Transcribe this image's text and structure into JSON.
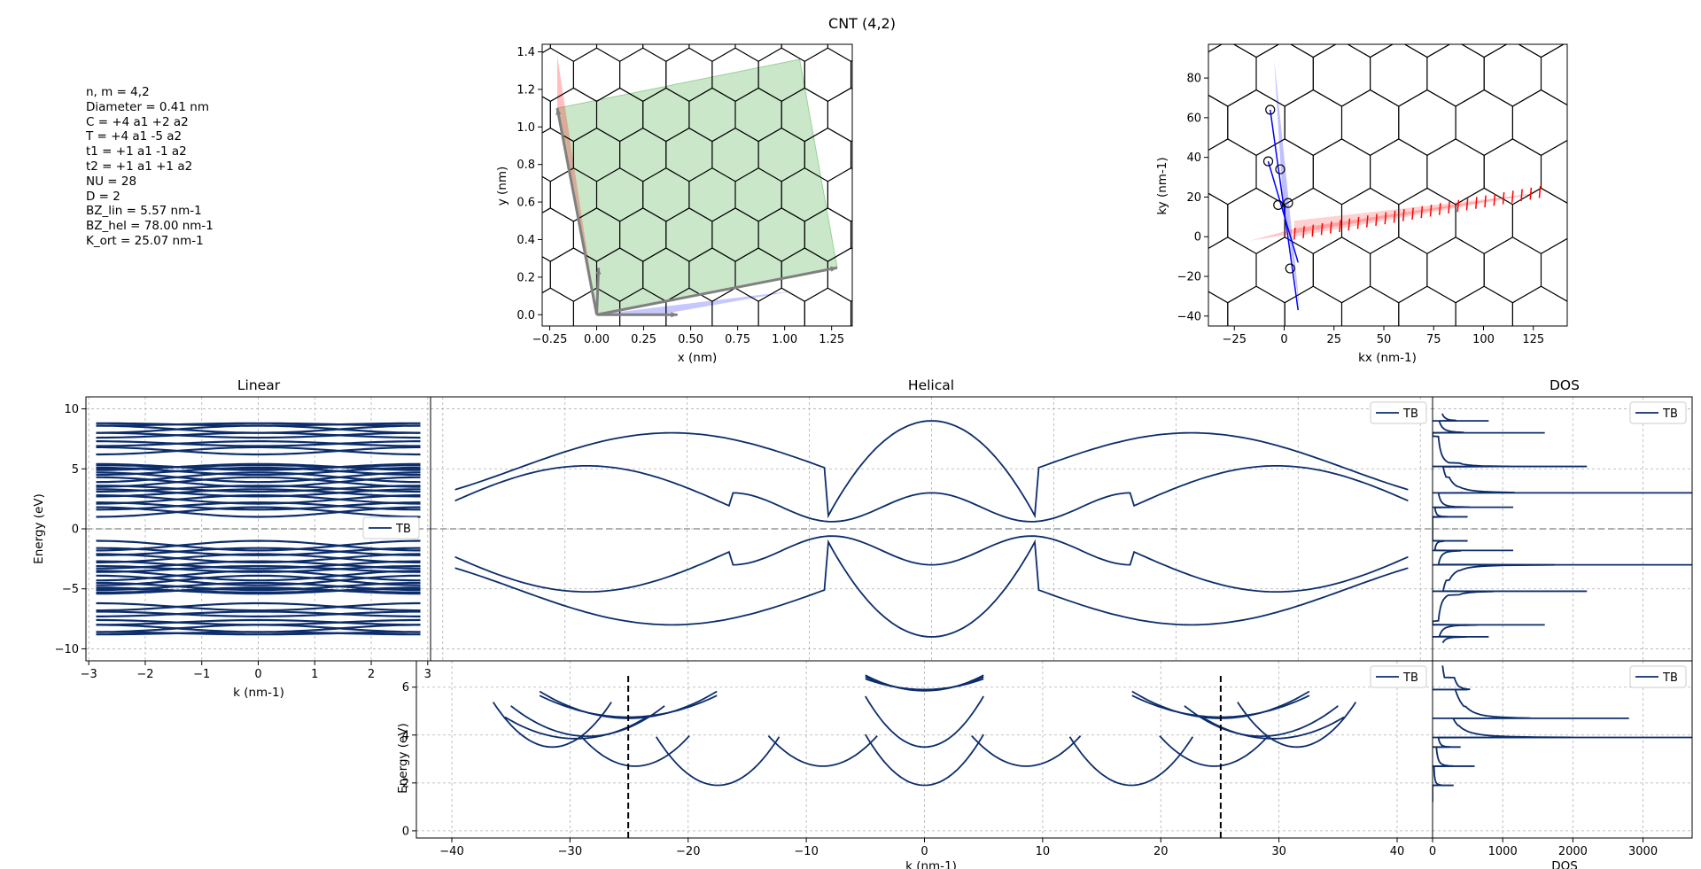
{
  "figure_title": "CNT (4,2)",
  "info_lines": [
    "n, m = 4,2",
    "Diameter = 0.41 nm",
    "C = +4 a1 +2 a2",
    "T = +4 a1 -5 a2",
    "t1 = +1 a1 -1 a2",
    "t2 = +1 a1 +1 a2",
    "NU = 28",
    "D = 2",
    "BZ_lin = 5.57 nm-1",
    "BZ_hel = 78.00 nm-1",
    "K_ort = 25.07 nm-1"
  ],
  "colors": {
    "band": "#0c2d6b",
    "red": "#ff0000",
    "blue": "#0000ff",
    "green": "#2ca02c",
    "arrow": "#808080"
  },
  "chart_data": [
    {
      "id": "lattice",
      "type": "scatter",
      "subtype": "honeycomb lattice with chiral/translation vectors",
      "xlabel": "x (nm)",
      "ylabel": "y (nm)",
      "xlim": [
        -0.29,
        1.36
      ],
      "ylim": [
        -0.06,
        1.44
      ],
      "xticks": [
        "−0.25",
        "0.00",
        "0.25",
        "0.50",
        "0.75",
        "1.00",
        "1.25"
      ],
      "yticks": [
        "0.0",
        "0.2",
        "0.4",
        "0.6",
        "0.8",
        "1.0",
        "1.2",
        "1.4"
      ],
      "vectors": [
        {
          "name": "C",
          "from": [
            0,
            0
          ],
          "to": [
            1.28,
            0.25
          ]
        },
        {
          "name": "T",
          "from": [
            0,
            0
          ],
          "to": [
            -0.21,
            1.1
          ]
        },
        {
          "name": "a1",
          "from": [
            0,
            0
          ],
          "to": [
            0.43,
            0
          ]
        },
        {
          "name": "a2",
          "from": [
            0,
            0
          ],
          "to": [
            0.01,
            0.25
          ]
        }
      ]
    },
    {
      "id": "reciprocal",
      "type": "scatter",
      "subtype": "reciprocal lattice with cutting lines",
      "xlabel": "kx (nm-1)",
      "ylabel": "ky (nm-1)",
      "xlim": [
        -38,
        142
      ],
      "ylim": [
        -45,
        97
      ],
      "xticks": [
        "−25",
        "0",
        "25",
        "50",
        "75",
        "100",
        "125"
      ],
      "yticks": [
        "−40",
        "−20",
        "0",
        "20",
        "40",
        "60",
        "80"
      ],
      "points": [
        [
          -7,
          64
        ],
        [
          -8,
          38
        ],
        [
          -2,
          34
        ],
        [
          -3,
          16
        ],
        [
          2,
          17
        ],
        [
          3,
          -16
        ]
      ]
    },
    {
      "id": "linear",
      "type": "line",
      "title": "Linear",
      "xlabel": "k (nm-1)",
      "ylabel": "Energy (eV)",
      "xlim": [
        -3.05,
        3.05
      ],
      "ylim": [
        -11,
        11
      ],
      "xticks": [
        "−3",
        "−2",
        "−1",
        "0",
        "1",
        "2",
        "3"
      ],
      "yticks": [
        "−10",
        "−5",
        "0",
        "5",
        "10"
      ],
      "legend": "TB",
      "legend_position": "right",
      "series": [
        {
          "name": "TB"
        }
      ]
    },
    {
      "id": "helical",
      "type": "line",
      "title": "Helical",
      "xlim": [
        -41,
        41
      ],
      "ylim": [
        -11,
        11
      ],
      "legend": "TB",
      "legend_position": "top-right",
      "series": [
        {
          "name": "TB"
        }
      ]
    },
    {
      "id": "dos_top",
      "type": "line",
      "title": "DOS",
      "xlim": [
        0,
        3700
      ],
      "ylim": [
        -11,
        11
      ],
      "legend": "TB",
      "legend_position": "top-right",
      "peaks": [
        {
          "e": 9.0,
          "v": 800
        },
        {
          "e": 8.0,
          "v": 1600
        },
        {
          "e": 5.2,
          "v": 2200
        },
        {
          "e": 3.0,
          "v": 3700
        },
        {
          "e": 1.8,
          "v": 1150
        },
        {
          "e": 1.0,
          "v": 500
        },
        {
          "e": -1.0,
          "v": 500
        },
        {
          "e": -1.8,
          "v": 1150
        },
        {
          "e": -3.0,
          "v": 3700
        },
        {
          "e": -5.2,
          "v": 2200
        },
        {
          "e": -8.0,
          "v": 1600
        },
        {
          "e": -9.0,
          "v": 800
        }
      ]
    },
    {
      "id": "k_ort",
      "type": "line",
      "xlabel": "k (nm-1)",
      "ylabel": "Energy (eV)",
      "xlim": [
        -43,
        43
      ],
      "ylim": [
        -0.3,
        7.1
      ],
      "xticks": [
        "−40",
        "−30",
        "−20",
        "−10",
        "0",
        "10",
        "20",
        "30",
        "40"
      ],
      "yticks": [
        "0",
        "2",
        "4",
        "6"
      ],
      "legend": "TB",
      "legend_position": "top-right",
      "markers": [
        -25.07,
        25.07
      ],
      "series": [
        {
          "name": "TB"
        }
      ]
    },
    {
      "id": "dos_bottom",
      "type": "line",
      "xlabel": "DOS",
      "xlim": [
        0,
        3700
      ],
      "ylim": [
        -0.3,
        7.1
      ],
      "xticks": [
        "0",
        "1000",
        "2000",
        "3000"
      ],
      "legend": "TB",
      "legend_position": "top-right",
      "peaks": [
        {
          "e": 5.9,
          "v": 500
        },
        {
          "e": 4.7,
          "v": 2800
        },
        {
          "e": 3.9,
          "v": 3700
        },
        {
          "e": 3.5,
          "v": 400
        },
        {
          "e": 2.7,
          "v": 600
        },
        {
          "e": 1.9,
          "v": 300
        }
      ]
    }
  ]
}
